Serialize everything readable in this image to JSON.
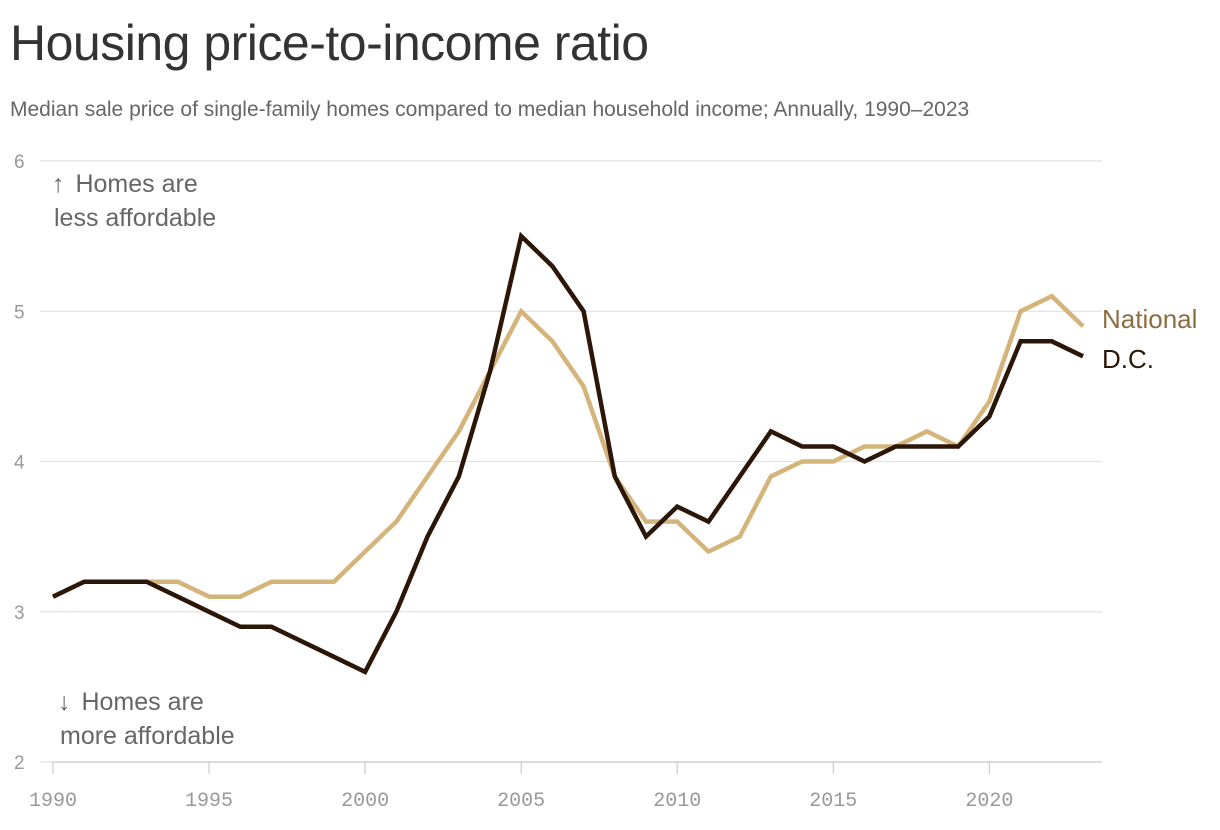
{
  "chart_data": {
    "type": "line",
    "title": "Housing price-to-income ratio",
    "subtitle": "Median sale price of single-family homes compared to median household income; Annually, 1990–2023",
    "xlabel": "",
    "ylabel": "",
    "xlim": [
      1990,
      2023
    ],
    "ylim": [
      2,
      6
    ],
    "x_ticks": [
      "1990",
      "1995",
      "2000",
      "2005",
      "2010",
      "2015",
      "2020"
    ],
    "y_ticks": [
      "2",
      "3",
      "4",
      "5",
      "6"
    ],
    "grid": true,
    "legend": "direct labels at right end of lines",
    "x": [
      1990,
      1991,
      1992,
      1993,
      1994,
      1995,
      1996,
      1997,
      1998,
      1999,
      2000,
      2001,
      2002,
      2003,
      2004,
      2005,
      2006,
      2007,
      2008,
      2009,
      2010,
      2011,
      2012,
      2013,
      2014,
      2015,
      2016,
      2017,
      2018,
      2019,
      2020,
      2021,
      2022,
      2023
    ],
    "series": [
      {
        "name": "National",
        "color": "#d4b47a",
        "label_color": "#8c6d3f",
        "values": [
          3.1,
          3.2,
          3.2,
          3.2,
          3.2,
          3.1,
          3.1,
          3.2,
          3.2,
          3.2,
          3.4,
          3.6,
          3.9,
          4.2,
          4.6,
          5.0,
          4.8,
          4.5,
          3.9,
          3.6,
          3.6,
          3.4,
          3.5,
          3.9,
          4.0,
          4.0,
          4.1,
          4.1,
          4.2,
          4.1,
          4.4,
          5.0,
          5.1,
          4.9
        ]
      },
      {
        "name": "D.C.",
        "color": "#2b1608",
        "label_color": "#2b1608",
        "values": [
          3.1,
          3.2,
          3.2,
          3.2,
          3.1,
          3.0,
          2.9,
          2.9,
          2.8,
          2.7,
          2.6,
          3.0,
          3.5,
          3.9,
          4.6,
          5.5,
          5.3,
          5.0,
          3.9,
          3.5,
          3.7,
          3.6,
          3.9,
          4.2,
          4.1,
          4.1,
          4.0,
          4.1,
          4.1,
          4.1,
          4.3,
          4.8,
          4.8,
          4.7
        ]
      }
    ],
    "annotations": {
      "top_arrow": "↑",
      "top_line1": "Homes are",
      "top_line2": "less affordable",
      "bottom_arrow": "↓",
      "bottom_line1": "Homes are",
      "bottom_line2": "more affordable"
    }
  }
}
